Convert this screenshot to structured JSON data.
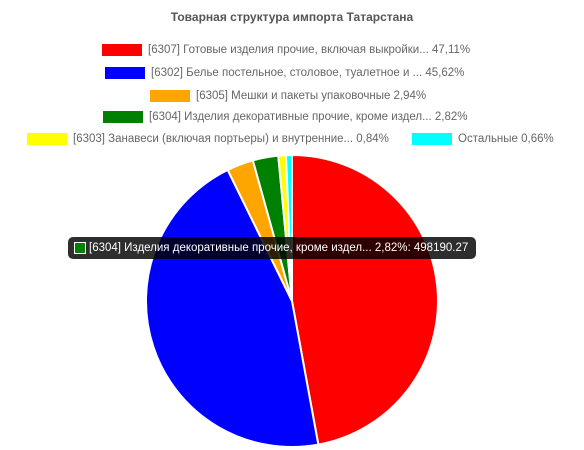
{
  "chart_data": {
    "type": "pie",
    "title": "Товарная структура импорта Татарстана",
    "legend_position": "top",
    "slices": [
      {
        "label": "[6307] Готовые изделия прочие, включая выкройки...",
        "percent_text": "47,11%",
        "value": 47.11,
        "color": "#ff0000"
      },
      {
        "label": "[6302] Белье постельное, столовое, туалетное и ...",
        "percent_text": "45,62%",
        "value": 45.62,
        "color": "#0000ff"
      },
      {
        "label": "[6305] Мешки и пакеты упаковочные",
        "percent_text": "2,94%",
        "value": 2.94,
        "color": "#ffa500"
      },
      {
        "label": "[6304] Изделия декоративные прочие, кроме издел...",
        "percent_text": "2,82%",
        "value": 2.82,
        "color": "#008000"
      },
      {
        "label": "[6303] Занавеси (включая портьеры) и внутренние...",
        "percent_text": "0,84%",
        "value": 0.84,
        "color": "#ffff00"
      },
      {
        "label": "Остальные ",
        "percent_text": "0,66%",
        "value": 0.66,
        "color": "#00ffff"
      }
    ]
  },
  "tooltip": {
    "text": "[6304] Изделия декоративные прочие, кроме издел... 2,82%: 498190.27",
    "color": "#008000"
  }
}
